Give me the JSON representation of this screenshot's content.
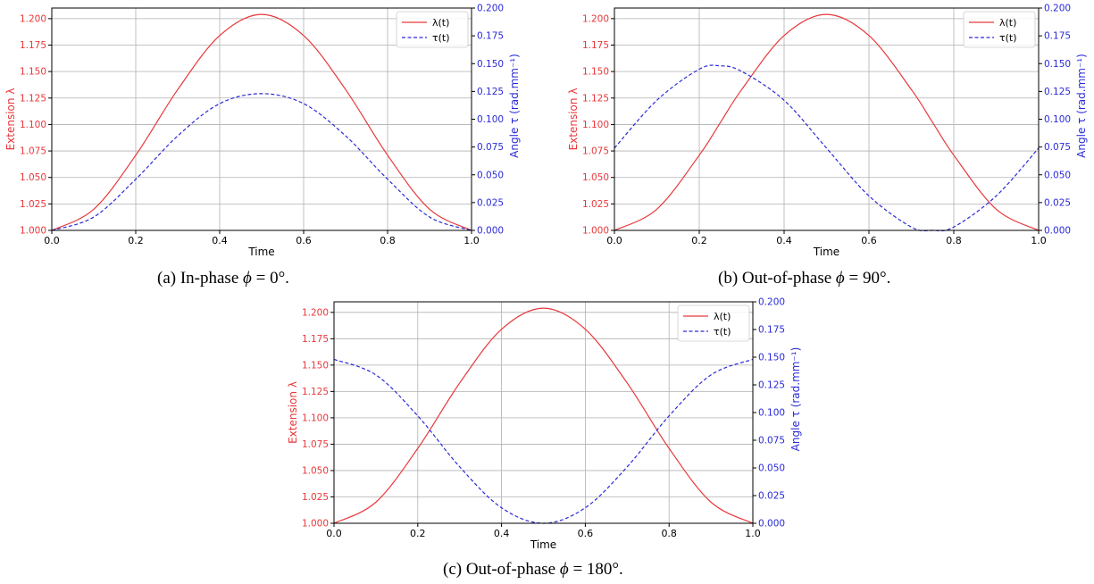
{
  "colors": {
    "lambda": "#e8383b",
    "tau": "#2a2ad8",
    "grid": "#b0b0b0",
    "axis": "#000000",
    "xtick": "#000000"
  },
  "chart_data": [
    {
      "type": "line",
      "xlabel": "Time",
      "ylabel": "Extension λ",
      "y2label": "Angle τ (rad.mm⁻¹)",
      "xlim": [
        0,
        1
      ],
      "ylim": [
        1.0,
        1.21
      ],
      "y2lim": [
        0,
        0.2
      ],
      "grid": true,
      "legend_position": "top-right",
      "x_ticks": [
        "0.0",
        "0.2",
        "0.4",
        "0.6",
        "0.8",
        "1.0"
      ],
      "y_ticks": [
        "1.000",
        "1.025",
        "1.050",
        "1.075",
        "1.100",
        "1.125",
        "1.150",
        "1.175",
        "1.200"
      ],
      "y2_ticks": [
        "0.000",
        "0.025",
        "0.050",
        "0.075",
        "0.100",
        "0.125",
        "0.150",
        "0.175",
        "0.200"
      ],
      "x": [
        0,
        0.1,
        0.2,
        0.3,
        0.4,
        0.5,
        0.6,
        0.7,
        0.8,
        0.9,
        1.0
      ],
      "series": [
        {
          "name": "λ(t)",
          "axis": "left",
          "style": "solid",
          "values": [
            1.0,
            1.02,
            1.071,
            1.133,
            1.184,
            1.204,
            1.184,
            1.133,
            1.071,
            1.02,
            1.0
          ]
        },
        {
          "name": "τ(t)",
          "axis": "right",
          "style": "dashed",
          "values": [
            0.0,
            0.012,
            0.046,
            0.085,
            0.114,
            0.123,
            0.114,
            0.085,
            0.046,
            0.012,
            0.0
          ]
        }
      ],
      "caption": {
        "prefix": "(a) In-phase ",
        "math": "ϕ",
        "suffix": " = 0°."
      }
    },
    {
      "type": "line",
      "xlabel": "Time",
      "ylabel": "Extension λ",
      "y2label": "Angle τ (rad.mm⁻¹)",
      "xlim": [
        0,
        1
      ],
      "ylim": [
        1.0,
        1.21
      ],
      "y2lim": [
        0,
        0.2
      ],
      "grid": true,
      "legend_position": "top-right",
      "x_ticks": [
        "0.0",
        "0.2",
        "0.4",
        "0.6",
        "0.8",
        "1.0"
      ],
      "y_ticks": [
        "1.000",
        "1.025",
        "1.050",
        "1.075",
        "1.100",
        "1.125",
        "1.150",
        "1.175",
        "1.200"
      ],
      "y2_ticks": [
        "0.000",
        "0.025",
        "0.050",
        "0.075",
        "0.100",
        "0.125",
        "0.150",
        "0.175",
        "0.200"
      ],
      "x": [
        0,
        0.1,
        0.2,
        0.25,
        0.3,
        0.4,
        0.5,
        0.6,
        0.7,
        0.75,
        0.8,
        0.9,
        1.0
      ],
      "series": [
        {
          "name": "λ(t)",
          "axis": "left",
          "style": "solid",
          "values": [
            1.0,
            1.02,
            1.071,
            1.102,
            1.133,
            1.184,
            1.204,
            1.184,
            1.133,
            1.102,
            1.071,
            1.02,
            1.0
          ]
        },
        {
          "name": "τ(t)",
          "axis": "right",
          "style": "dashed",
          "values": [
            0.074,
            0.117,
            0.145,
            0.148,
            0.143,
            0.117,
            0.074,
            0.031,
            0.003,
            0.0,
            0.003,
            0.031,
            0.074
          ]
        }
      ],
      "caption": {
        "prefix": "(b) Out-of-phase ",
        "math": "ϕ",
        "suffix": " = 90°."
      }
    },
    {
      "type": "line",
      "xlabel": "Time",
      "ylabel": "Extension λ",
      "y2label": "Angle τ (rad.mm⁻¹)",
      "xlim": [
        0,
        1
      ],
      "ylim": [
        1.0,
        1.21
      ],
      "y2lim": [
        0,
        0.2
      ],
      "grid": true,
      "legend_position": "top-right",
      "x_ticks": [
        "0.0",
        "0.2",
        "0.4",
        "0.6",
        "0.8",
        "1.0"
      ],
      "y_ticks": [
        "1.000",
        "1.025",
        "1.050",
        "1.075",
        "1.100",
        "1.125",
        "1.150",
        "1.175",
        "1.200"
      ],
      "y2_ticks": [
        "0.000",
        "0.025",
        "0.050",
        "0.075",
        "0.100",
        "0.125",
        "0.150",
        "0.175",
        "0.200"
      ],
      "x": [
        0,
        0.1,
        0.2,
        0.3,
        0.4,
        0.5,
        0.6,
        0.7,
        0.8,
        0.9,
        1.0
      ],
      "series": [
        {
          "name": "λ(t)",
          "axis": "left",
          "style": "solid",
          "values": [
            1.0,
            1.02,
            1.071,
            1.133,
            1.184,
            1.204,
            1.184,
            1.133,
            1.071,
            1.02,
            1.0
          ]
        },
        {
          "name": "τ(t)",
          "axis": "right",
          "style": "dashed",
          "values": [
            0.148,
            0.134,
            0.097,
            0.051,
            0.014,
            0.0,
            0.014,
            0.051,
            0.097,
            0.134,
            0.148
          ]
        }
      ],
      "caption": {
        "prefix": "(c) Out-of-phase ",
        "math": "ϕ",
        "suffix": " = 180°."
      }
    }
  ]
}
